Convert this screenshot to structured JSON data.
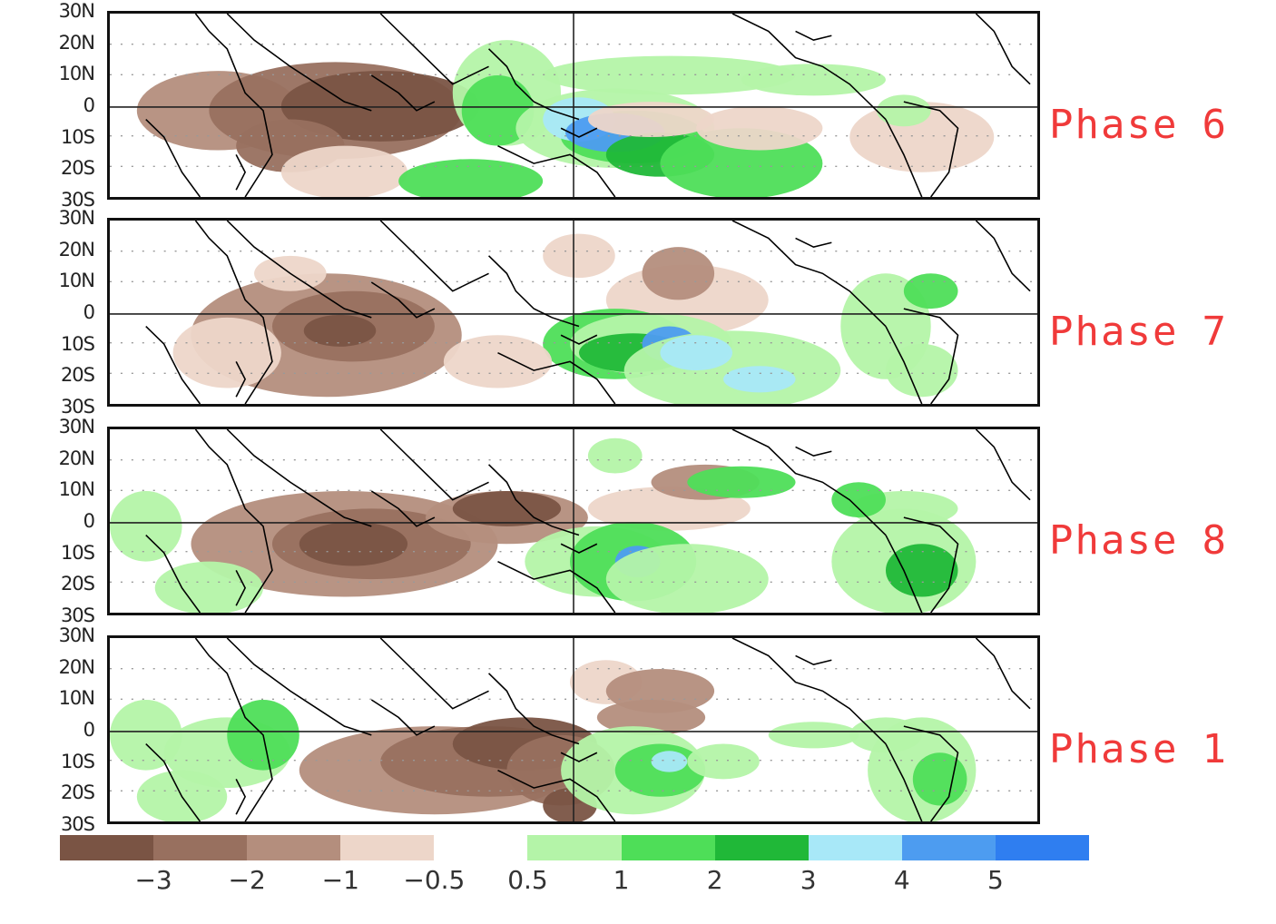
{
  "y_axis_labels": [
    "30N",
    "20N",
    "10N",
    "0",
    "10S",
    "20S",
    "30S"
  ],
  "panels": [
    {
      "label_word": "Phase",
      "label_num": "6"
    },
    {
      "label_word": "Phase",
      "label_num": "7"
    },
    {
      "label_word": "Phase",
      "label_num": "8"
    },
    {
      "label_word": "Phase",
      "label_num": "1"
    }
  ],
  "colorbar": {
    "labels": [
      "−3",
      "−2",
      "−1",
      "−0.5",
      "0.5",
      "1",
      "2",
      "3",
      "4",
      "5"
    ],
    "colors": [
      "#7a5444",
      "#98705f",
      "#b48e7d",
      "#edd6c9",
      "#ffffff",
      "#b4f4a8",
      "#4ede58",
      "#20b838",
      "#a8e8f8",
      "#4d9cf0",
      "#2f7ef0"
    ]
  },
  "colors": {
    "label_red": "#f03a3a",
    "frame": "#111111",
    "coast": "#000000"
  }
}
